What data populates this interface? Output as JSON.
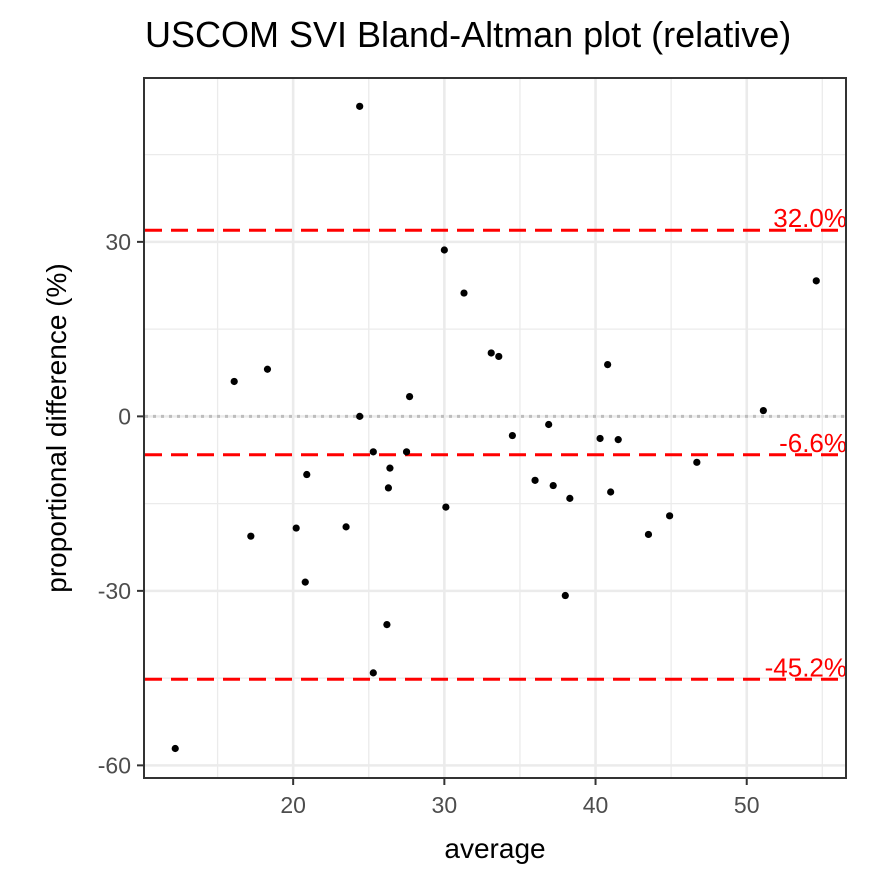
{
  "chart_data": {
    "type": "scatter",
    "title": "USCOM SVI   Bland-Altman plot (relative)",
    "xlabel": "average",
    "ylabel": "proportional difference (%)",
    "xlim": [
      10.2,
      56.5
    ],
    "ylim": [
      -62.0,
      58.0
    ],
    "xticks": [
      20,
      30,
      40,
      50
    ],
    "yticks": [
      -60,
      -30,
      0,
      30
    ],
    "grid": true,
    "points": [
      {
        "x": 12.2,
        "y": -57.1
      },
      {
        "x": 16.1,
        "y": 6.0
      },
      {
        "x": 17.2,
        "y": -20.6
      },
      {
        "x": 18.3,
        "y": 8.1
      },
      {
        "x": 20.2,
        "y": -19.2
      },
      {
        "x": 20.8,
        "y": -28.5
      },
      {
        "x": 20.9,
        "y": -10.0
      },
      {
        "x": 23.5,
        "y": -19.0
      },
      {
        "x": 24.4,
        "y": 53.3
      },
      {
        "x": 24.4,
        "y": 0.0
      },
      {
        "x": 25.3,
        "y": -6.1
      },
      {
        "x": 25.3,
        "y": -44.1
      },
      {
        "x": 26.2,
        "y": -35.8
      },
      {
        "x": 26.3,
        "y": -12.3
      },
      {
        "x": 26.4,
        "y": -8.9
      },
      {
        "x": 27.5,
        "y": -6.1
      },
      {
        "x": 27.7,
        "y": 3.4
      },
      {
        "x": 30.0,
        "y": 28.6
      },
      {
        "x": 30.1,
        "y": -15.6
      },
      {
        "x": 31.3,
        "y": 21.2
      },
      {
        "x": 33.1,
        "y": 10.9
      },
      {
        "x": 33.6,
        "y": 10.3
      },
      {
        "x": 34.5,
        "y": -3.3
      },
      {
        "x": 36.0,
        "y": -11.0
      },
      {
        "x": 36.9,
        "y": -1.4
      },
      {
        "x": 37.2,
        "y": -11.9
      },
      {
        "x": 38.0,
        "y": -30.8
      },
      {
        "x": 38.3,
        "y": -14.1
      },
      {
        "x": 40.3,
        "y": -3.8
      },
      {
        "x": 40.8,
        "y": 8.9
      },
      {
        "x": 41.0,
        "y": -13.0
      },
      {
        "x": 41.5,
        "y": -4.0
      },
      {
        "x": 43.5,
        "y": -20.3
      },
      {
        "x": 44.9,
        "y": -17.1
      },
      {
        "x": 46.7,
        "y": -7.9
      },
      {
        "x": 51.1,
        "y": 1.0
      },
      {
        "x": 54.6,
        "y": 23.3
      }
    ],
    "reference_lines": [
      {
        "y": 32.0,
        "label": "32.0%",
        "style": "dashed",
        "color": "#ff0000"
      },
      {
        "y": -6.6,
        "label": "-6.6%",
        "style": "dashed",
        "color": "#ff0000"
      },
      {
        "y": -45.2,
        "label": "-45.2%",
        "style": "dashed",
        "color": "#ff0000"
      },
      {
        "y": 0,
        "label": "",
        "style": "dotted",
        "color": "#bdbdbd"
      }
    ],
    "colors": {
      "points": "#000000",
      "limits": "#ff0000",
      "zero_line": "#bdbdbd",
      "grid": "#ebebeb",
      "panel_border": "#333333",
      "tick_text": "#4d4d4d"
    }
  }
}
